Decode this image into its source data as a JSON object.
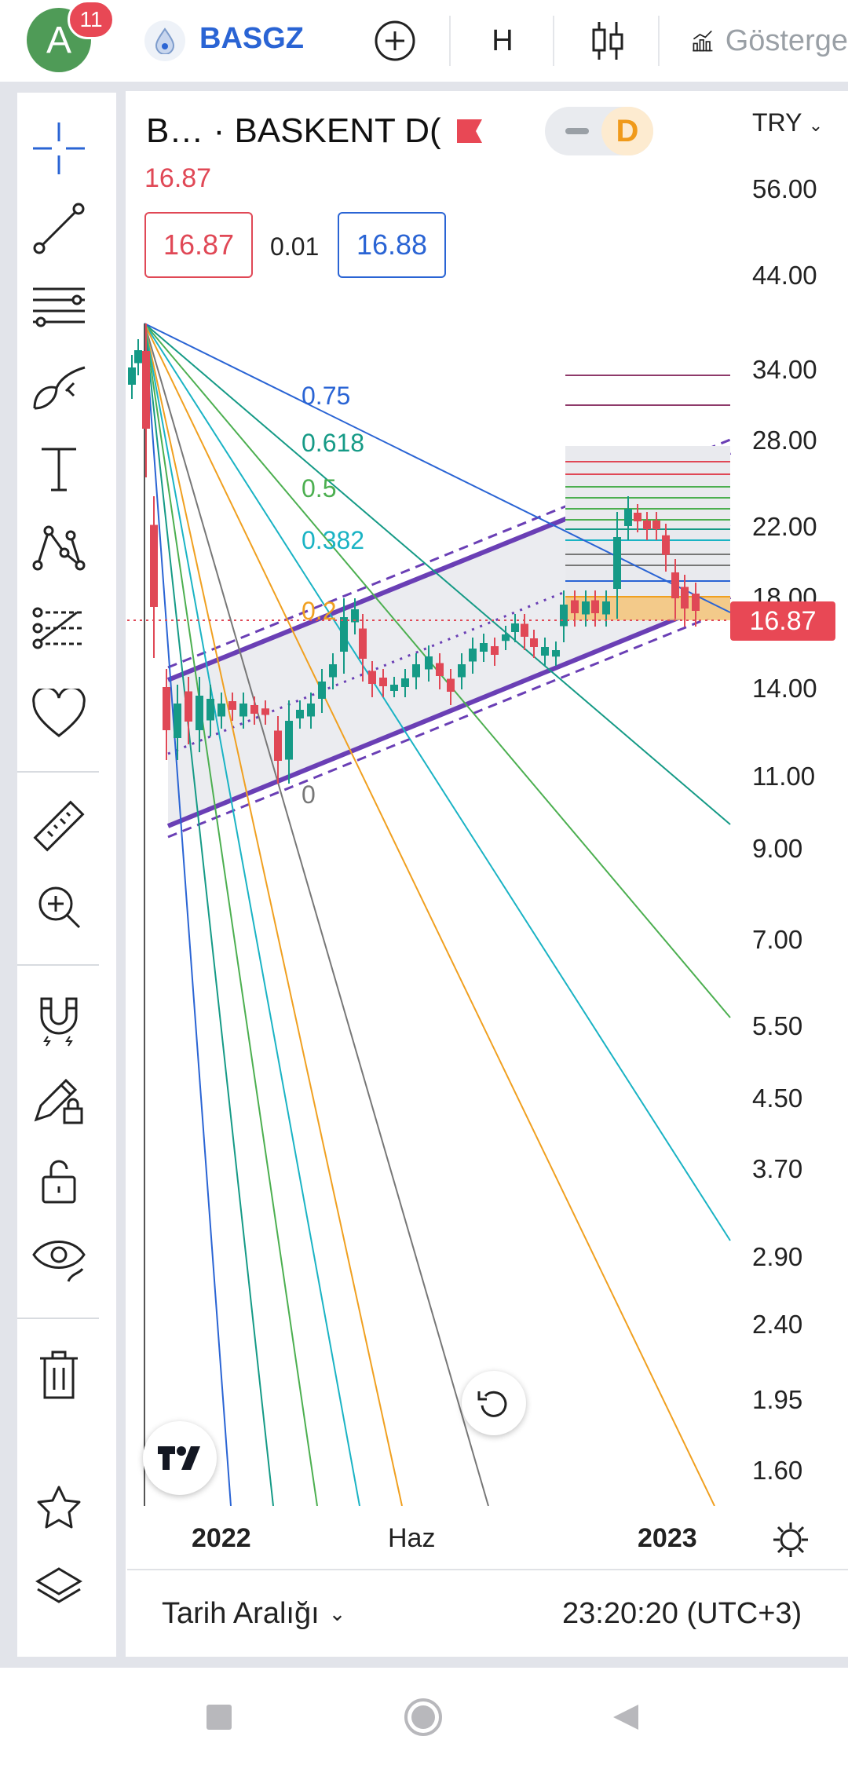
{
  "header": {
    "avatar_letter": "A",
    "notification_count": "11",
    "symbol": "BASGZ",
    "interval": "H",
    "indicators_label": "Gösterge"
  },
  "legend": {
    "title": "B… · BASKENT D(",
    "toggle_letter": "D",
    "last_price": "16.87",
    "bid": "16.87",
    "spread": "0.01",
    "ask": "16.88",
    "currency": "TRY"
  },
  "chart_data": {
    "type": "candlestick",
    "symbol": "BASGZ",
    "currency": "TRY",
    "y_scale": "log",
    "y_ticks": [
      "56.00",
      "44.00",
      "34.00",
      "28.00",
      "22.00",
      "18.00",
      "14.00",
      "11.00",
      "9.00",
      "7.00",
      "5.50",
      "4.50",
      "3.70",
      "2.90",
      "2.40",
      "1.95",
      "1.60"
    ],
    "x_ticks": [
      "2022",
      "Haz",
      "2023"
    ],
    "current_price": "16.87",
    "fib_levels": [
      "0.75",
      "0.618",
      "0.5",
      "0.382",
      "0.2",
      "0"
    ],
    "drawings": [
      "fibonacci speed fan",
      "parallel channel",
      "horizontal price range"
    ]
  },
  "colors": {
    "accent_blue": "#2a64d4",
    "down_red": "#e04856",
    "up_green": "#159a86",
    "channel_purple": "#6a3fb5",
    "range_orange": "#f5c270"
  },
  "footer": {
    "date_range_label": "Tarih Aralığı",
    "clock": "23:20:20 (UTC+3)"
  },
  "tools": [
    "crosshair-icon",
    "trend-line-icon",
    "fib-tools-icon",
    "brush-icon",
    "text-icon",
    "pattern-icon",
    "prediction-icon",
    "favorite-icon",
    "ruler-icon",
    "zoom-icon",
    "magnet-icon",
    "draw-lock-icon",
    "lock-icon",
    "eye-icon",
    "trash-icon",
    "star-icon",
    "layers-icon"
  ]
}
